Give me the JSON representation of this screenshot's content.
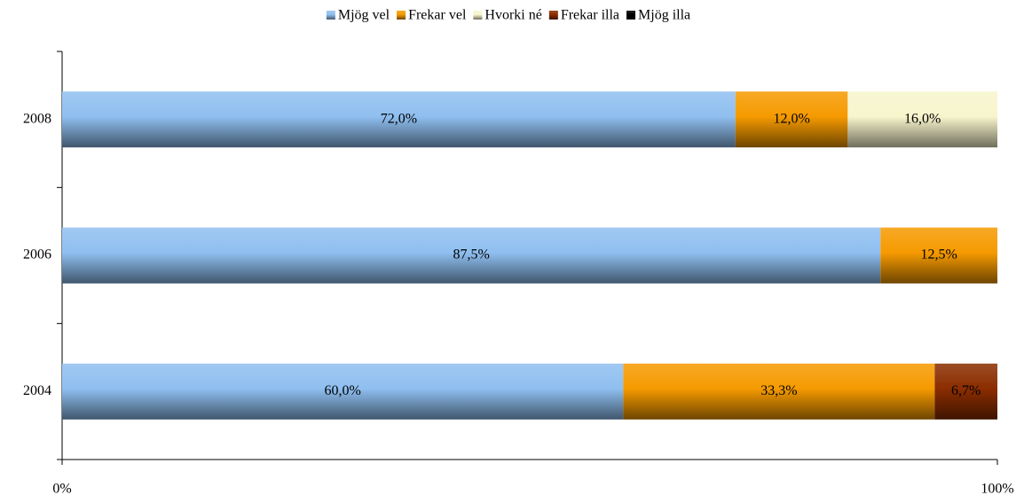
{
  "chart_data": {
    "type": "stacked_bar_horizontal",
    "categories": [
      "2004",
      "2006",
      "2008"
    ],
    "series": [
      {
        "name": "Mjög vel",
        "color": "#8fbff0",
        "values": [
          60.0,
          87.5,
          72.0
        ],
        "value_labels": [
          "60,0%",
          "87,5%",
          "72,0%"
        ]
      },
      {
        "name": "Frekar vel",
        "color": "#f59a00",
        "values": [
          33.3,
          12.5,
          12.0
        ],
        "value_labels": [
          "33,3%",
          "12,5%",
          "12,0%"
        ]
      },
      {
        "name": "Hvorki né",
        "color": "#f7f5cc",
        "values": [
          null,
          null,
          16.0
        ],
        "value_labels": [
          null,
          null,
          "16,0%"
        ]
      },
      {
        "name": "Frekar illa",
        "color": "#8b2d00",
        "values": [
          6.7,
          null,
          null
        ],
        "value_labels": [
          "6,7%",
          null,
          null
        ]
      },
      {
        "name": "Mjög illa",
        "color": "#000000",
        "values": [
          null,
          null,
          null
        ],
        "value_labels": [
          null,
          null,
          null
        ]
      }
    ],
    "xlim": [
      0,
      100
    ],
    "xticks": [
      {
        "value": 0,
        "label": "0%"
      },
      {
        "value": 100,
        "label": "100%"
      }
    ],
    "legend": "top"
  }
}
